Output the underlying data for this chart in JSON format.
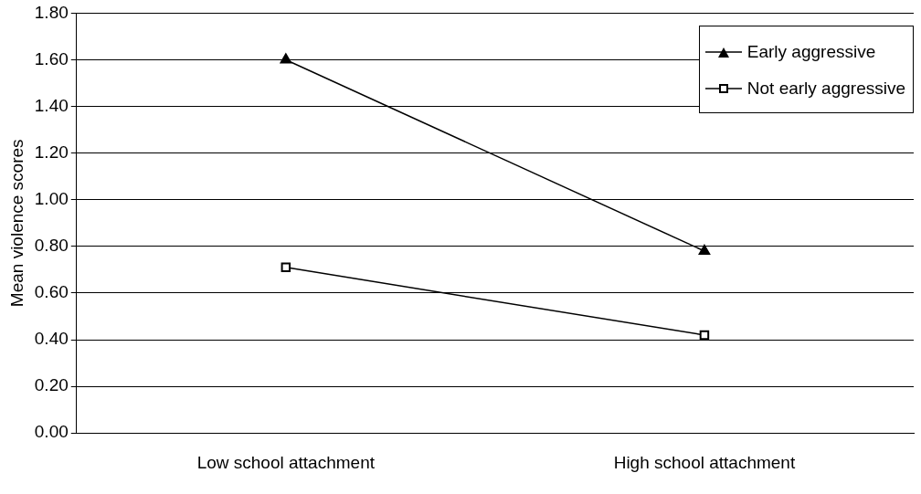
{
  "chart_data": {
    "type": "line",
    "ylabel": "Mean violence scores",
    "categories": [
      "Low school attachment",
      "High school attachment"
    ],
    "series": [
      {
        "name": "Early aggressive",
        "color": "#000000",
        "values": [
          1.6,
          0.78
        ],
        "marker": "triangle"
      },
      {
        "name": "Not early aggressive",
        "color": "#000000",
        "values": [
          0.71,
          0.42
        ],
        "marker": "square"
      }
    ],
    "ylim": [
      0,
      1.8
    ],
    "yticks": [
      {
        "value": 0,
        "label": "0.00"
      },
      {
        "value": 0.2,
        "label": "0.20"
      },
      {
        "value": 0.4,
        "label": "0.40"
      },
      {
        "value": 0.6,
        "label": "0.60"
      },
      {
        "value": 0.8,
        "label": "0.80"
      },
      {
        "value": 1,
        "label": "1.00"
      },
      {
        "value": 1.2,
        "label": "1.20"
      },
      {
        "value": 1.4,
        "label": "1.40"
      },
      {
        "value": 1.6,
        "label": "1.60"
      },
      {
        "value": 1.8,
        "label": "1.80"
      }
    ],
    "grid": "y",
    "legend": "top right",
    "line_style": "solid"
  }
}
